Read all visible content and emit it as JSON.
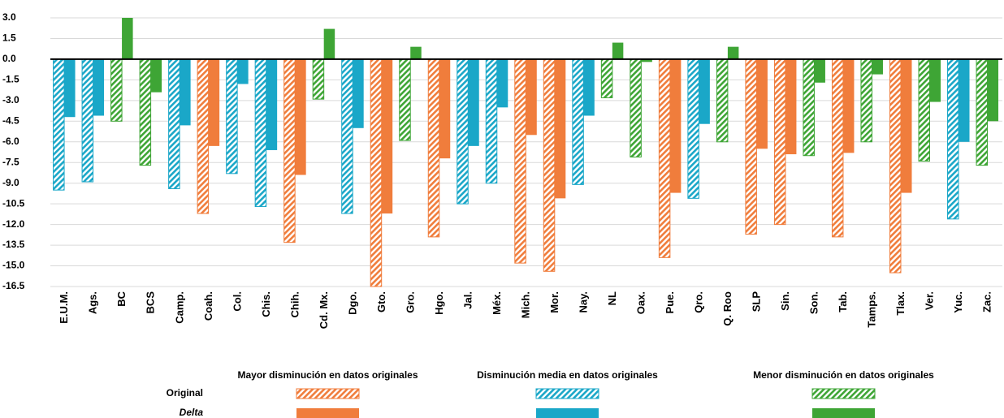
{
  "chart_data": {
    "type": "bar",
    "categories": [
      "E.U.M.",
      "Ags.",
      "BC",
      "BCS",
      "Camp.",
      "Coah.",
      "Col.",
      "Chis.",
      "Chih.",
      "Cd. Mx.",
      "Dgo.",
      "Gto.",
      "Gro.",
      "Hgo.",
      "Jal.",
      "Méx.",
      "Mich.",
      "Mor.",
      "Nay.",
      "NL",
      "Oax.",
      "Pue.",
      "Qro.",
      "Q. Roo",
      "SLP",
      "Sin.",
      "Son.",
      "Tab.",
      "Tamps.",
      "Tlax.",
      "Ver.",
      "Yuc.",
      "Zac."
    ],
    "legend_groups": [
      {
        "name": "Mayor disminución en datos originales",
        "color": "#f07d3c"
      },
      {
        "name": "Disminución media en datos originales",
        "color": "#1aa7c8"
      },
      {
        "name": "Menor disminución en datos originales",
        "color": "#3ea535"
      }
    ],
    "series": [
      {
        "name": "Original",
        "pattern": "hatched",
        "colors": [
          "#1aa7c8",
          "#1aa7c8",
          "#3ea535",
          "#3ea535",
          "#1aa7c8",
          "#f07d3c",
          "#1aa7c8",
          "#1aa7c8",
          "#f07d3c",
          "#3ea535",
          "#1aa7c8",
          "#f07d3c",
          "#3ea535",
          "#f07d3c",
          "#1aa7c8",
          "#1aa7c8",
          "#f07d3c",
          "#f07d3c",
          "#1aa7c8",
          "#3ea535",
          "#3ea535",
          "#f07d3c",
          "#1aa7c8",
          "#3ea535",
          "#f07d3c",
          "#f07d3c",
          "#3ea535",
          "#f07d3c",
          "#3ea535",
          "#f07d3c",
          "#3ea535",
          "#1aa7c8",
          "#3ea535"
        ],
        "values": [
          -9.5,
          -8.9,
          -4.5,
          -7.7,
          -9.4,
          -11.2,
          -8.3,
          -10.7,
          -13.3,
          -2.9,
          -11.2,
          -16.5,
          -5.9,
          -12.9,
          -10.5,
          -9.0,
          -14.8,
          -15.4,
          -9.1,
          -2.8,
          -7.1,
          -14.4,
          -10.1,
          -6.0,
          -12.7,
          -12.0,
          -7.0,
          -12.9,
          -6.0,
          -15.5,
          -7.4,
          -11.6,
          -7.7
        ]
      },
      {
        "name": "Delta",
        "pattern": "solid",
        "colors": [
          "#1aa7c8",
          "#1aa7c8",
          "#3ea535",
          "#3ea535",
          "#1aa7c8",
          "#f07d3c",
          "#1aa7c8",
          "#1aa7c8",
          "#f07d3c",
          "#3ea535",
          "#1aa7c8",
          "#f07d3c",
          "#3ea535",
          "#f07d3c",
          "#1aa7c8",
          "#1aa7c8",
          "#f07d3c",
          "#f07d3c",
          "#1aa7c8",
          "#3ea535",
          "#3ea535",
          "#f07d3c",
          "#1aa7c8",
          "#3ea535",
          "#f07d3c",
          "#f07d3c",
          "#3ea535",
          "#f07d3c",
          "#3ea535",
          "#f07d3c",
          "#3ea535",
          "#1aa7c8",
          "#3ea535"
        ],
        "values": [
          -4.2,
          -4.1,
          3.0,
          -2.4,
          -4.8,
          -6.3,
          -1.8,
          -6.6,
          -8.4,
          2.2,
          -5.0,
          -11.2,
          0.9,
          -7.2,
          -6.3,
          -3.5,
          -5.5,
          -10.1,
          -4.1,
          1.2,
          -0.2,
          -9.7,
          -4.7,
          0.9,
          -6.5,
          -6.9,
          -1.7,
          -6.8,
          -1.1,
          -9.7,
          -3.1,
          -6.0,
          -4.5
        ]
      }
    ],
    "ylim": [
      -16.5,
      3
    ],
    "yticks": [
      {
        "value": 3,
        "label": "3.0"
      },
      1.5,
      {
        "value": 0,
        "label": "0.0"
      },
      -1.5,
      {
        "value": -3,
        "label": "-3.0"
      },
      -4.5,
      {
        "value": -6,
        "label": "-6.0"
      },
      -7.5,
      {
        "value": -9,
        "label": "-9.0"
      },
      -10.5,
      {
        "value": -12,
        "label": "-12.0"
      },
      -13.5,
      {
        "value": -15,
        "label": "-15.0"
      },
      -16.5
    ],
    "grid": true
  }
}
